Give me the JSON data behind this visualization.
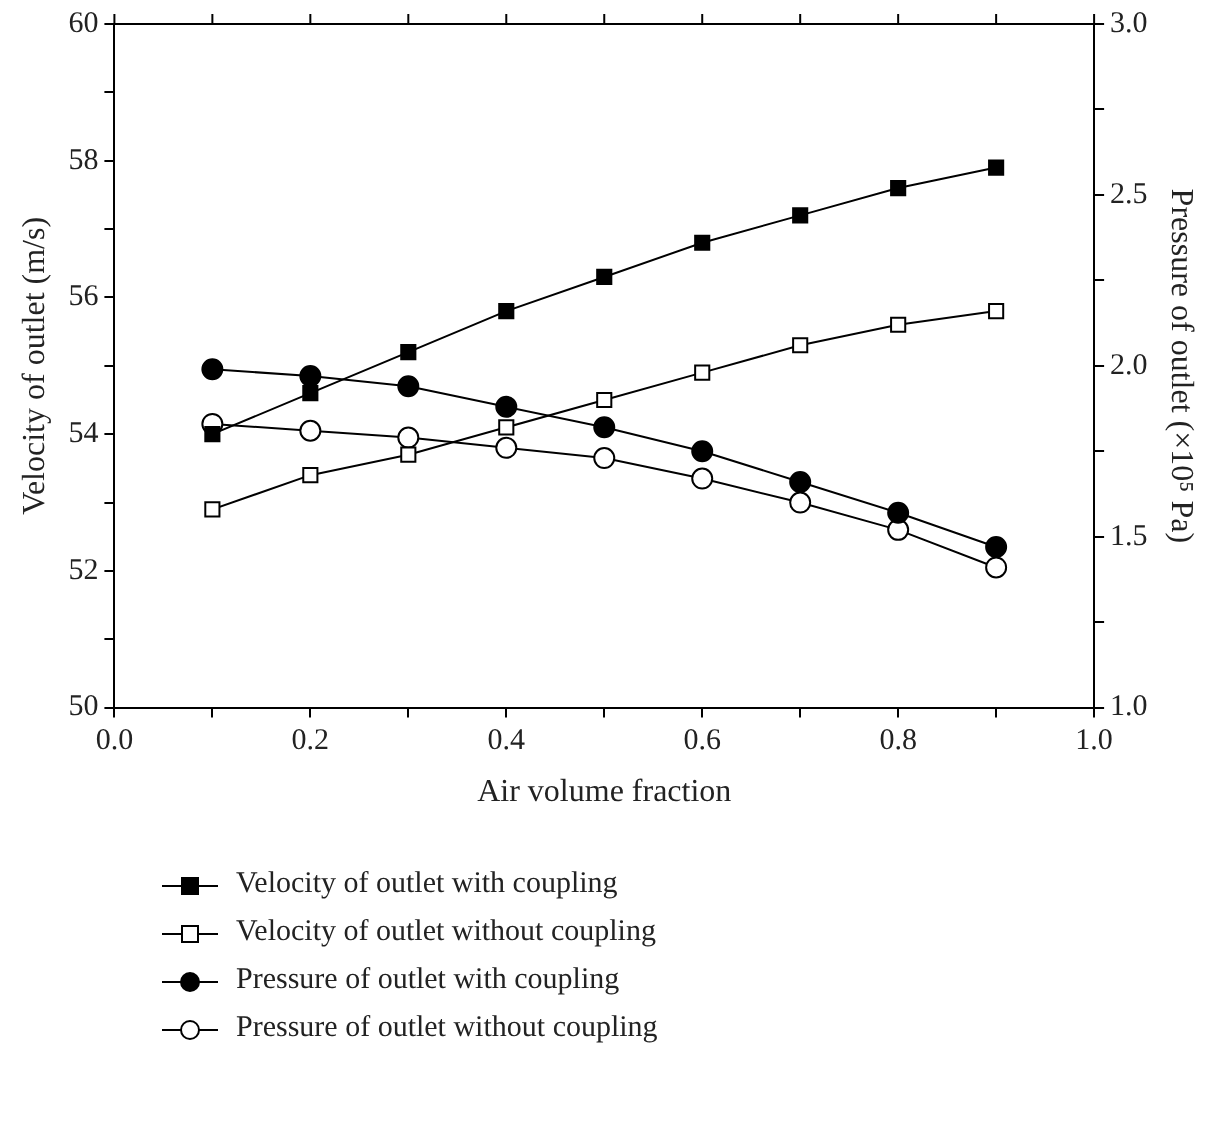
{
  "chart_data": {
    "type": "line",
    "xlabel": "Air volume fraction",
    "ylabel": "Velocity of outlet (m/s)",
    "y2label": "Pressure of outlet (×10⁵ Pa)",
    "x": [
      0.1,
      0.2,
      0.3,
      0.4,
      0.5,
      0.6,
      0.7,
      0.8,
      0.9
    ],
    "series": [
      {
        "name": "Velocity of outlet with coupling",
        "color": "#000000",
        "marker": "square",
        "values": [
          54.0,
          54.6,
          55.2,
          55.8,
          56.3,
          56.8,
          57.2,
          57.6,
          57.9
        ]
      },
      {
        "name": "Velocity of outlet without coupling",
        "color": "#000000",
        "marker": "square",
        "values": [
          52.9,
          53.4,
          53.7,
          54.1,
          54.5,
          54.9,
          55.3,
          55.6,
          55.8
        ]
      },
      {
        "name": "Pressure of outlet with coupling",
        "color": "#000000",
        "marker": "circle",
        "axis": "y2",
        "values": [
          1.99,
          1.97,
          1.94,
          1.88,
          1.82,
          1.75,
          1.66,
          1.57,
          1.47
        ]
      },
      {
        "name": "Pressure of outlet without coupling",
        "color": "#000000",
        "marker": "circle",
        "axis": "y2",
        "values": [
          1.83,
          1.81,
          1.79,
          1.76,
          1.73,
          1.67,
          1.6,
          1.52,
          1.41
        ]
      }
    ],
    "xlim": [
      0,
      1
    ],
    "xticks": [
      {
        "value": 0,
        "label": "0.0"
      },
      {
        "value": 0.1,
        "label": null
      },
      {
        "value": 0.2,
        "label": "0.2"
      },
      {
        "value": 0.3,
        "label": null
      },
      {
        "value": 0.4,
        "label": "0.4"
      },
      {
        "value": 0.5,
        "label": null
      },
      {
        "value": 0.6,
        "label": "0.6"
      },
      {
        "value": 0.7,
        "label": null
      },
      {
        "value": 0.8,
        "label": "0.8"
      },
      {
        "value": 0.9,
        "label": null
      },
      {
        "value": 1,
        "label": "1.0"
      }
    ],
    "ylim": [
      50,
      60
    ],
    "yticks": [
      50,
      {
        "value": 51,
        "label": null
      },
      52,
      {
        "value": 53,
        "label": null
      },
      54,
      {
        "value": 55,
        "label": null
      },
      56,
      {
        "value": 57,
        "label": null
      },
      58,
      {
        "value": 59,
        "label": null
      },
      60
    ],
    "y2lim": [
      1,
      3
    ],
    "y2ticks": [
      {
        "value": 1,
        "label": "1.0"
      },
      {
        "value": 1.25,
        "label": null
      },
      {
        "value": 1.5,
        "label": "1.5"
      },
      {
        "value": 1.75,
        "label": null
      },
      {
        "value": 2,
        "label": "2.0"
      },
      {
        "value": 2.25,
        "label": null
      },
      {
        "value": 2.5,
        "label": "2.5"
      },
      {
        "value": 2.75,
        "label": null
      },
      {
        "value": 3,
        "label": "3.0"
      }
    ],
    "grid": false,
    "legend": "bottom",
    "line_style": "solid"
  }
}
